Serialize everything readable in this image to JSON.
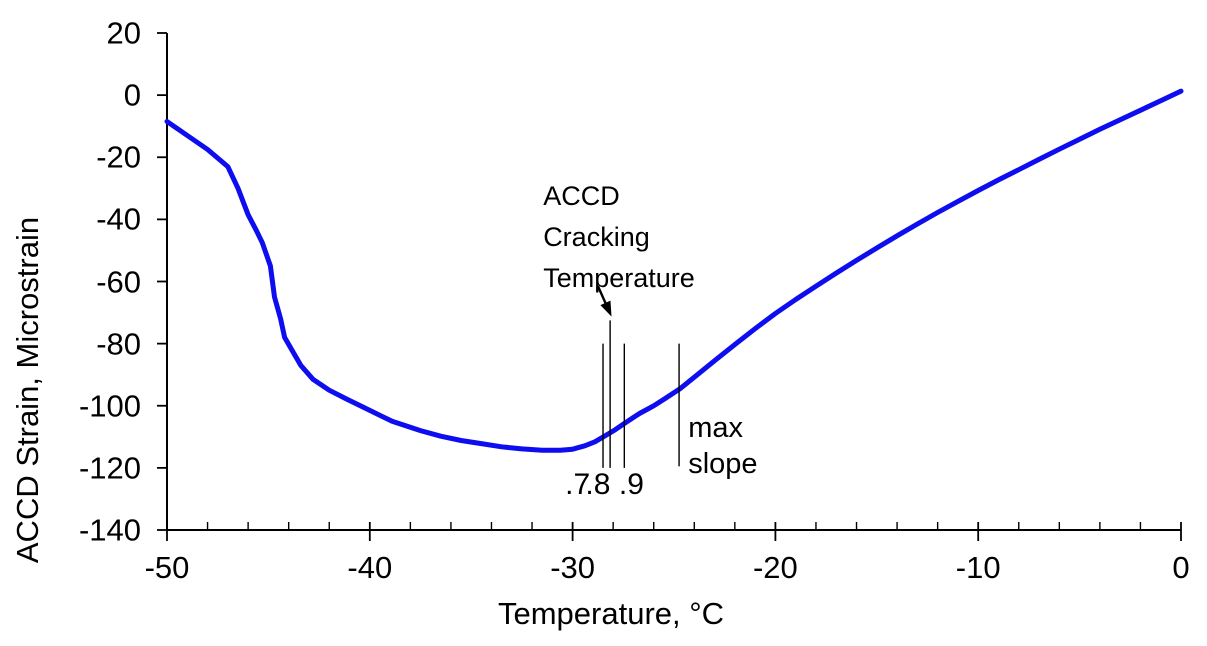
{
  "chart_data": {
    "type": "line",
    "title": "",
    "xlabel": "Temperature, °C",
    "ylabel": "ACCD Strain, Microstrain",
    "xlim": [
      -50,
      0
    ],
    "ylim": [
      -140,
      20
    ],
    "grid": false,
    "legend": null,
    "x_ticks": [
      {
        "value": -50,
        "label": "-50"
      },
      {
        "value": -40,
        "label": "-40"
      },
      {
        "value": -30,
        "label": "-30"
      },
      {
        "value": -20,
        "label": "-20"
      },
      {
        "value": -10,
        "label": "-10"
      },
      {
        "value": 0,
        "label": "0"
      }
    ],
    "x_minor_tick_step": 2,
    "y_ticks": [
      {
        "value": 20,
        "label": "20"
      },
      {
        "value": 0,
        "label": "0"
      },
      {
        "value": -20,
        "label": "-20"
      },
      {
        "value": -40,
        "label": "-40"
      },
      {
        "value": -60,
        "label": "-60"
      },
      {
        "value": -80,
        "label": "-80"
      },
      {
        "value": -100,
        "label": "-100"
      },
      {
        "value": -120,
        "label": "-120"
      },
      {
        "value": -140,
        "label": "-140"
      }
    ],
    "series": [
      {
        "name": "ACCD strain curve",
        "color": "#0d0df0",
        "stroke_width": 5,
        "points": [
          [
            -50,
            -8.5
          ],
          [
            -49,
            -13
          ],
          [
            -48,
            -17.5
          ],
          [
            -47,
            -23
          ],
          [
            -46.5,
            -30
          ],
          [
            -46,
            -38.5
          ],
          [
            -45.6,
            -43.5
          ],
          [
            -45.3,
            -47.5
          ],
          [
            -44.9,
            -55
          ],
          [
            -44.7,
            -65
          ],
          [
            -44.4,
            -72
          ],
          [
            -44.2,
            -78
          ],
          [
            -43.8,
            -82.5
          ],
          [
            -43.4,
            -87
          ],
          [
            -42.8,
            -91.5
          ],
          [
            -42,
            -95
          ],
          [
            -41.1,
            -98
          ],
          [
            -40,
            -101.5
          ],
          [
            -38.9,
            -105
          ],
          [
            -37.5,
            -108
          ],
          [
            -36.5,
            -109.8
          ],
          [
            -35.5,
            -111.2
          ],
          [
            -34.5,
            -112.2
          ],
          [
            -33.5,
            -113.2
          ],
          [
            -32.5,
            -113.9
          ],
          [
            -31.5,
            -114.3
          ],
          [
            -30.6,
            -114.3
          ],
          [
            -30,
            -114
          ],
          [
            -29.4,
            -112.9
          ],
          [
            -28.9,
            -111.6
          ],
          [
            -28.4,
            -109.7
          ],
          [
            -27.9,
            -107.7
          ],
          [
            -27.4,
            -105.5
          ],
          [
            -26.7,
            -102.5
          ],
          [
            -26,
            -100
          ],
          [
            -25.4,
            -97.5
          ],
          [
            -24.7,
            -94.5
          ],
          [
            -24,
            -90.8
          ],
          [
            -23,
            -85.5
          ],
          [
            -22,
            -80.3
          ],
          [
            -21,
            -75.2
          ],
          [
            -20,
            -70.3
          ],
          [
            -19,
            -65.8
          ],
          [
            -18,
            -61.5
          ],
          [
            -17,
            -57.3
          ],
          [
            -16,
            -53.2
          ],
          [
            -15,
            -49.2
          ],
          [
            -14,
            -45.3
          ],
          [
            -13,
            -41.5
          ],
          [
            -12,
            -37.8
          ],
          [
            -11,
            -34.2
          ],
          [
            -10,
            -30.7
          ],
          [
            -9,
            -27.3
          ],
          [
            -8,
            -24
          ],
          [
            -7,
            -20.7
          ],
          [
            -6,
            -17.4
          ],
          [
            -5,
            -14.2
          ],
          [
            -4,
            -11
          ],
          [
            -3,
            -7.9
          ],
          [
            -2,
            -4.9
          ],
          [
            -1,
            -1.8
          ],
          [
            0,
            1.3
          ]
        ]
      }
    ],
    "annotations": {
      "cracking_label": {
        "line1": "ACCD",
        "line2": "Cracking",
        "line3": "Temperature",
        "x": -31.45,
        "y": -26
      },
      "arrow": {
        "from_x": -28.75,
        "from_y": -61.5,
        "to_x": -28.08,
        "to_y": -71.3
      },
      "guide_lines": [
        {
          "name": "slope-fraction-0.7-line",
          "x": -28.5,
          "top": -80,
          "bottom": -120
        },
        {
          "name": "slope-fraction-0.8-line",
          "x": -28.15,
          "top": -72.5,
          "bottom": -120
        },
        {
          "name": "slope-fraction-0.9-line",
          "x": -27.45,
          "top": -80,
          "bottom": -120
        },
        {
          "name": "max-slope-line",
          "x": -24.75,
          "top": -80,
          "bottom": -119.5
        }
      ],
      "fraction_labels": [
        {
          "text": ".7",
          "x": -29.75,
          "y": -125.5
        },
        {
          "text": ".8",
          "x": -28.75,
          "y": -125.5
        },
        {
          "text": ".9",
          "x": -27.1,
          "y": -125.5
        }
      ],
      "max_slope_label": {
        "line1": "max",
        "line2": "slope",
        "x": -24.3,
        "y": -101.5
      }
    },
    "colors": {
      "axis": "#000000",
      "text": "#000000",
      "background": "#ffffff",
      "curve": "#0d0df0"
    }
  }
}
